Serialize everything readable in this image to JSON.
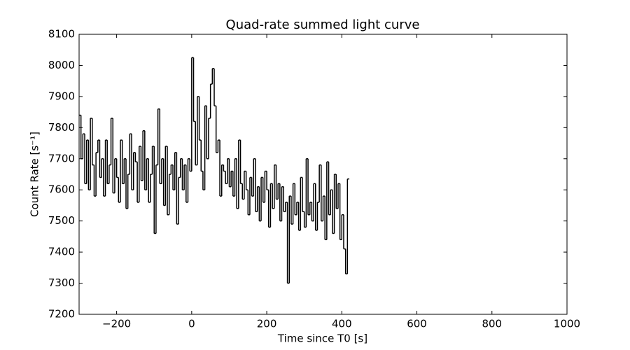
{
  "chart_data": {
    "type": "step",
    "title": "Quad-rate summed light curve",
    "x_label": "Time since T0 [s]",
    "y_label": "Count Rate [s⁻¹]",
    "color": "#000000",
    "xlim": [
      -300,
      1000
    ],
    "ylim": [
      7200,
      8100
    ],
    "xticks": [
      {
        "value": -200,
        "label": "−200"
      },
      0,
      200,
      400,
      600,
      800,
      1000
    ],
    "yticks": [
      7200,
      7300,
      7400,
      7500,
      7600,
      7700,
      7800,
      7900,
      8000,
      8100
    ],
    "grid": false,
    "x": [
      -300,
      -295,
      -290,
      -285,
      -280,
      -275,
      -270,
      -265,
      -260,
      -255,
      -250,
      -245,
      -240,
      -235,
      -230,
      -225,
      -220,
      -215,
      -210,
      -205,
      -200,
      -195,
      -190,
      -185,
      -180,
      -175,
      -170,
      -165,
      -160,
      -155,
      -150,
      -145,
      -140,
      -135,
      -130,
      -125,
      -120,
      -115,
      -110,
      -105,
      -100,
      -95,
      -90,
      -85,
      -80,
      -75,
      -70,
      -65,
      -60,
      -55,
      -50,
      -45,
      -40,
      -35,
      -30,
      -25,
      -20,
      -15,
      -10,
      -5,
      0,
      5,
      10,
      15,
      20,
      25,
      30,
      35,
      40,
      45,
      50,
      55,
      60,
      65,
      70,
      75,
      80,
      85,
      90,
      95,
      100,
      105,
      110,
      115,
      120,
      125,
      130,
      135,
      140,
      145,
      150,
      155,
      160,
      165,
      170,
      175,
      180,
      185,
      190,
      195,
      200,
      205,
      210,
      215,
      220,
      225,
      230,
      235,
      240,
      245,
      250,
      255,
      260,
      265,
      270,
      275,
      280,
      285,
      290,
      295,
      300,
      305,
      310,
      315,
      320,
      325,
      330,
      335,
      340,
      345,
      350,
      355,
      360,
      365,
      370,
      375,
      380,
      385,
      390,
      395,
      400,
      405,
      410,
      415
    ],
    "values": [
      7840,
      7700,
      7780,
      7620,
      7760,
      7600,
      7830,
      7680,
      7580,
      7720,
      7760,
      7640,
      7700,
      7580,
      7760,
      7620,
      7680,
      7830,
      7590,
      7700,
      7640,
      7560,
      7760,
      7620,
      7700,
      7540,
      7650,
      7780,
      7600,
      7720,
      7690,
      7560,
      7740,
      7630,
      7790,
      7600,
      7700,
      7560,
      7650,
      7740,
      7460,
      7680,
      7860,
      7620,
      7700,
      7550,
      7740,
      7520,
      7650,
      7680,
      7600,
      7720,
      7490,
      7640,
      7700,
      7600,
      7680,
      7560,
      7700,
      7660,
      8025,
      7820,
      7680,
      7900,
      7760,
      7660,
      7600,
      7870,
      7700,
      7830,
      7940,
      7990,
      7870,
      7720,
      7760,
      7580,
      7680,
      7660,
      7620,
      7700,
      7610,
      7660,
      7580,
      7700,
      7540,
      7760,
      7620,
      7570,
      7660,
      7600,
      7520,
      7640,
      7580,
      7700,
      7530,
      7610,
      7500,
      7640,
      7560,
      7660,
      7600,
      7480,
      7620,
      7540,
      7680,
      7570,
      7620,
      7500,
      7610,
      7530,
      7560,
      7300,
      7580,
      7490,
      7620,
      7520,
      7560,
      7470,
      7640,
      7530,
      7480,
      7700,
      7520,
      7560,
      7500,
      7620,
      7470,
      7560,
      7680,
      7500,
      7580,
      7440,
      7690,
      7520,
      7600,
      7460,
      7650,
      7540,
      7620,
      7440,
      7520,
      7410,
      7330,
      7635
    ]
  }
}
